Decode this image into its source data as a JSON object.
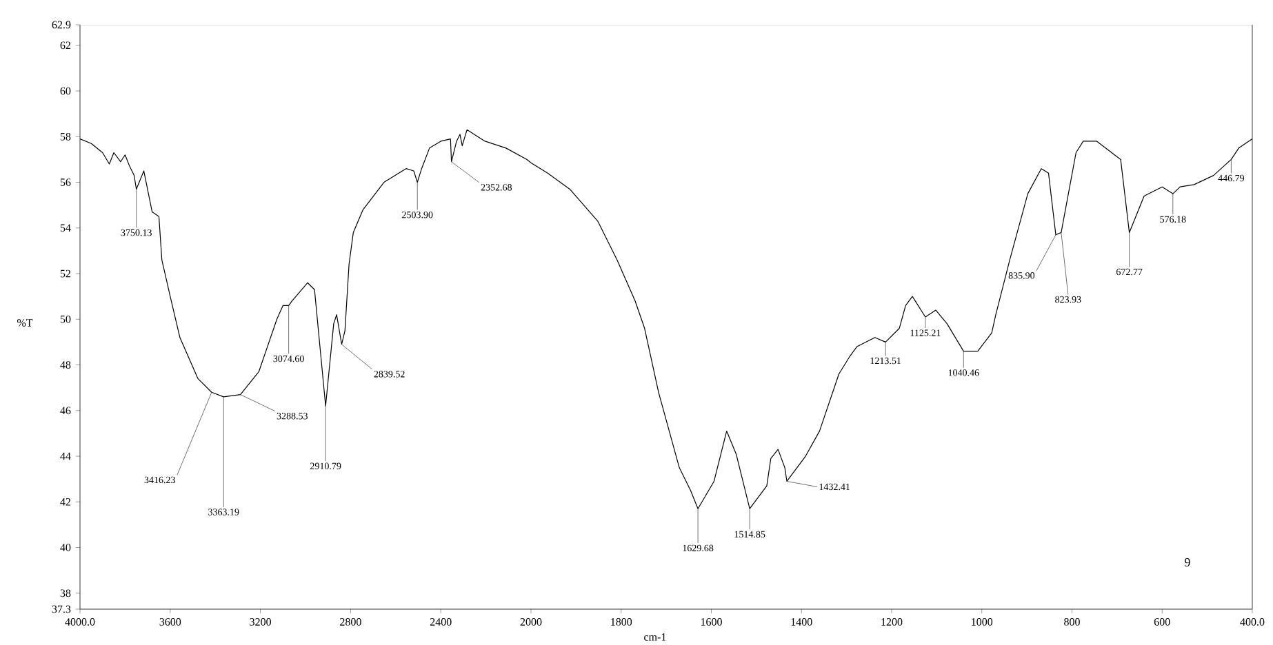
{
  "chart_data": [
    {
      "type": "line",
      "ylabel": "%T",
      "xlim": [
        4000,
        2000
      ],
      "ylim": [
        37.3,
        62.9
      ],
      "xticks": [
        {
          "value": 4000,
          "label": "4000.0"
        },
        3600,
        3200,
        2800,
        2400
      ],
      "yticks": [
        37.3,
        38,
        40,
        42,
        44,
        46,
        48,
        50,
        52,
        54,
        56,
        58,
        60,
        62,
        62.9
      ],
      "series": [
        {
          "color": "#000000",
          "x": [
            4000,
            3950,
            3900,
            3870,
            3850,
            3820,
            3800,
            3780,
            3760,
            3750.13,
            3717,
            3680,
            3650,
            3637,
            3600,
            3557,
            3477,
            3416.23,
            3363.19,
            3288.53,
            3207,
            3127,
            3100,
            3074.6,
            3060,
            2991,
            2960,
            2910.79,
            2875,
            2862,
            2839.52,
            2825,
            2807,
            2788,
            2745,
            2652,
            2554,
            2520,
            2503.9,
            2485,
            2450,
            2400,
            2357,
            2352.68,
            2330,
            2315,
            2305,
            2284,
            2204,
            2111,
            2018,
            2000
          ],
          "values": [
            57.9,
            57.7,
            57.3,
            56.8,
            57.3,
            56.9,
            57.2,
            56.7,
            56.3,
            55.7,
            56.5,
            54.7,
            54.5,
            52.6,
            51.0,
            49.2,
            47.4,
            46.8,
            46.6,
            46.7,
            47.7,
            50.0,
            50.6,
            50.6,
            50.8,
            51.6,
            51.3,
            46.2,
            49.8,
            50.2,
            48.9,
            49.5,
            52.4,
            53.8,
            54.8,
            56.0,
            56.6,
            56.5,
            56.0,
            56.6,
            57.5,
            57.8,
            57.9,
            56.9,
            57.8,
            58.1,
            57.6,
            58.3,
            57.8,
            57.5,
            57.0,
            56.85
          ]
        }
      ],
      "annotations": [
        {
          "text": "3750.13",
          "x": 3750.13,
          "y": 55.7
        },
        {
          "text": "3416.23",
          "x": 3416.23,
          "y": 46.8
        },
        {
          "text": "3363.19",
          "x": 3363.19,
          "y": 46.6
        },
        {
          "text": "3288.53",
          "x": 3288.53,
          "y": 46.7
        },
        {
          "text": "3074.60",
          "x": 3074.6,
          "y": 50.6
        },
        {
          "text": "2910.79",
          "x": 2910.79,
          "y": 46.2
        },
        {
          "text": "2839.52",
          "x": 2839.52,
          "y": 48.9
        },
        {
          "text": "2503.90",
          "x": 2503.9,
          "y": 56.0
        },
        {
          "text": "2352.68",
          "x": 2352.68,
          "y": 56.9
        }
      ]
    },
    {
      "type": "line",
      "xlabel": "cm-1",
      "xlim": [
        2000,
        400
      ],
      "ylim": [
        37.3,
        62.9
      ],
      "tick_labels": "x",
      "xticks": [
        2000,
        1800,
        1600,
        1400,
        1200,
        1000,
        800,
        600,
        {
          "value": 400,
          "label": "400.0"
        }
      ],
      "series": [
        {
          "color": "#000000",
          "x": [
            2000,
            1963,
            1914,
            1852,
            1809,
            1769,
            1748,
            1717,
            1671,
            1646,
            1629.68,
            1594,
            1566,
            1545,
            1514.85,
            1477,
            1468,
            1452,
            1437,
            1432.41,
            1391,
            1360,
            1317,
            1292,
            1277,
            1237,
            1213.51,
            1183,
            1169,
            1154,
            1125.21,
            1102,
            1077,
            1040.46,
            1009,
            978,
            969,
            938,
            898,
            868,
            852,
            835.9,
            823.93,
            791,
            775,
            745,
            692,
            672.77,
            640,
            600,
            576.18,
            560,
            529,
            486,
            446.79,
            430,
            400
          ],
          "values": [
            56.85,
            56.4,
            55.7,
            54.3,
            52.6,
            50.8,
            49.6,
            46.8,
            43.5,
            42.5,
            41.7,
            42.9,
            45.1,
            44.1,
            41.7,
            42.7,
            43.9,
            44.3,
            43.5,
            42.9,
            44.0,
            45.1,
            47.6,
            48.4,
            48.8,
            49.2,
            49.0,
            49.6,
            50.6,
            51.0,
            50.1,
            50.4,
            49.8,
            48.6,
            48.6,
            49.4,
            50.2,
            52.6,
            55.5,
            56.6,
            56.4,
            53.7,
            53.8,
            57.3,
            57.8,
            57.8,
            57.0,
            53.8,
            55.4,
            55.8,
            55.5,
            55.8,
            55.9,
            56.3,
            57.0,
            57.5,
            57.9
          ]
        }
      ],
      "annotations": [
        {
          "text": "1629.68",
          "x": 1629.68,
          "y": 41.7
        },
        {
          "text": "1514.85",
          "x": 1514.85,
          "y": 41.7
        },
        {
          "text": "1432.41",
          "x": 1432.41,
          "y": 42.9
        },
        {
          "text": "1213.51",
          "x": 1213.51,
          "y": 49.0
        },
        {
          "text": "1125.21",
          "x": 1125.21,
          "y": 50.1
        },
        {
          "text": "1040.46",
          "x": 1040.46,
          "y": 48.6
        },
        {
          "text": "835.90",
          "x": 835.9,
          "y": 53.7
        },
        {
          "text": "823.93",
          "x": 823.93,
          "y": 53.8
        },
        {
          "text": "672.77",
          "x": 672.77,
          "y": 53.8
        },
        {
          "text": "576.18",
          "x": 576.18,
          "y": 55.5
        },
        {
          "text": "446.79",
          "x": 446.79,
          "y": 57.0
        },
        "9"
      ]
    }
  ]
}
